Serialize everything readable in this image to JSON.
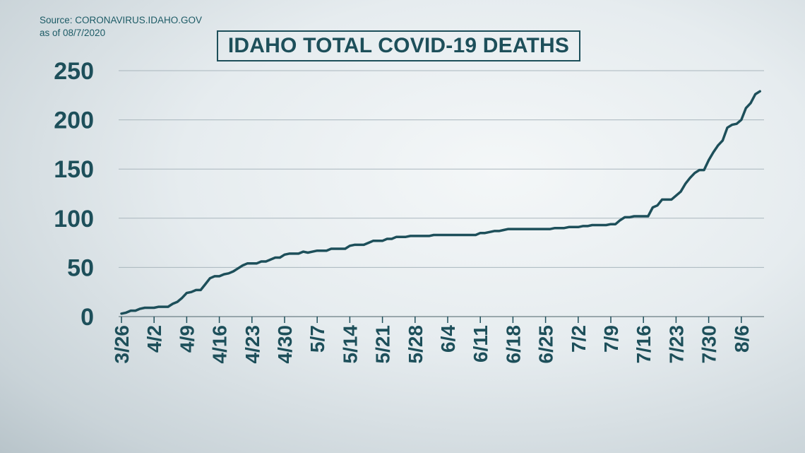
{
  "source": {
    "line1": "Source: CORONAVIRUS.IDAHO.GOV",
    "line2": "as of 08/7/2020"
  },
  "colors": {
    "line": "#1d4f5a",
    "text": "#1d4f5a",
    "grid": "#a9b6bd"
  },
  "chart_data": {
    "type": "line",
    "title": "IDAHO TOTAL COVID-19 DEATHS",
    "xlabel": "",
    "ylabel": "",
    "ylim": [
      0,
      250
    ],
    "yticks": [
      0,
      50,
      100,
      150,
      200,
      250
    ],
    "xtick_labels": [
      "3/26",
      "4/2",
      "4/9",
      "4/16",
      "4/23",
      "4/30",
      "5/7",
      "5/14",
      "5/21",
      "5/28",
      "6/4",
      "6/11",
      "6/18",
      "6/25",
      "7/2",
      "7/9",
      "7/16",
      "7/23",
      "7/30",
      "8/6"
    ],
    "grid": "horizontal",
    "series": [
      {
        "values": [
          3,
          4,
          6,
          6,
          8,
          9,
          9,
          9,
          10,
          10,
          10,
          13,
          15,
          19,
          24,
          25,
          27,
          27,
          33,
          39,
          41,
          41,
          43,
          44,
          46,
          49,
          52,
          54,
          54,
          54,
          56,
          56,
          58,
          60,
          60,
          63,
          64,
          64,
          64,
          66,
          65,
          66,
          67,
          67,
          67,
          69,
          69,
          69,
          69,
          72,
          73,
          73,
          73,
          75,
          77,
          77,
          77,
          79,
          79,
          81,
          81,
          81,
          82,
          82,
          82,
          82,
          82,
          83,
          83,
          83,
          83,
          83,
          83,
          83,
          83,
          83,
          83,
          85,
          85,
          86,
          87,
          87,
          88,
          89,
          89,
          89,
          89,
          89,
          89,
          89,
          89,
          89,
          89,
          90,
          90,
          90,
          91,
          91,
          91,
          92,
          92,
          93,
          93,
          93,
          93,
          94,
          94,
          98,
          101,
          101,
          102,
          102,
          102,
          102,
          111,
          113,
          119,
          119,
          119,
          123,
          127,
          135,
          141,
          146,
          149,
          149,
          159,
          167,
          174,
          179,
          192,
          195,
          196,
          200,
          212,
          217,
          226,
          229
        ]
      }
    ]
  }
}
